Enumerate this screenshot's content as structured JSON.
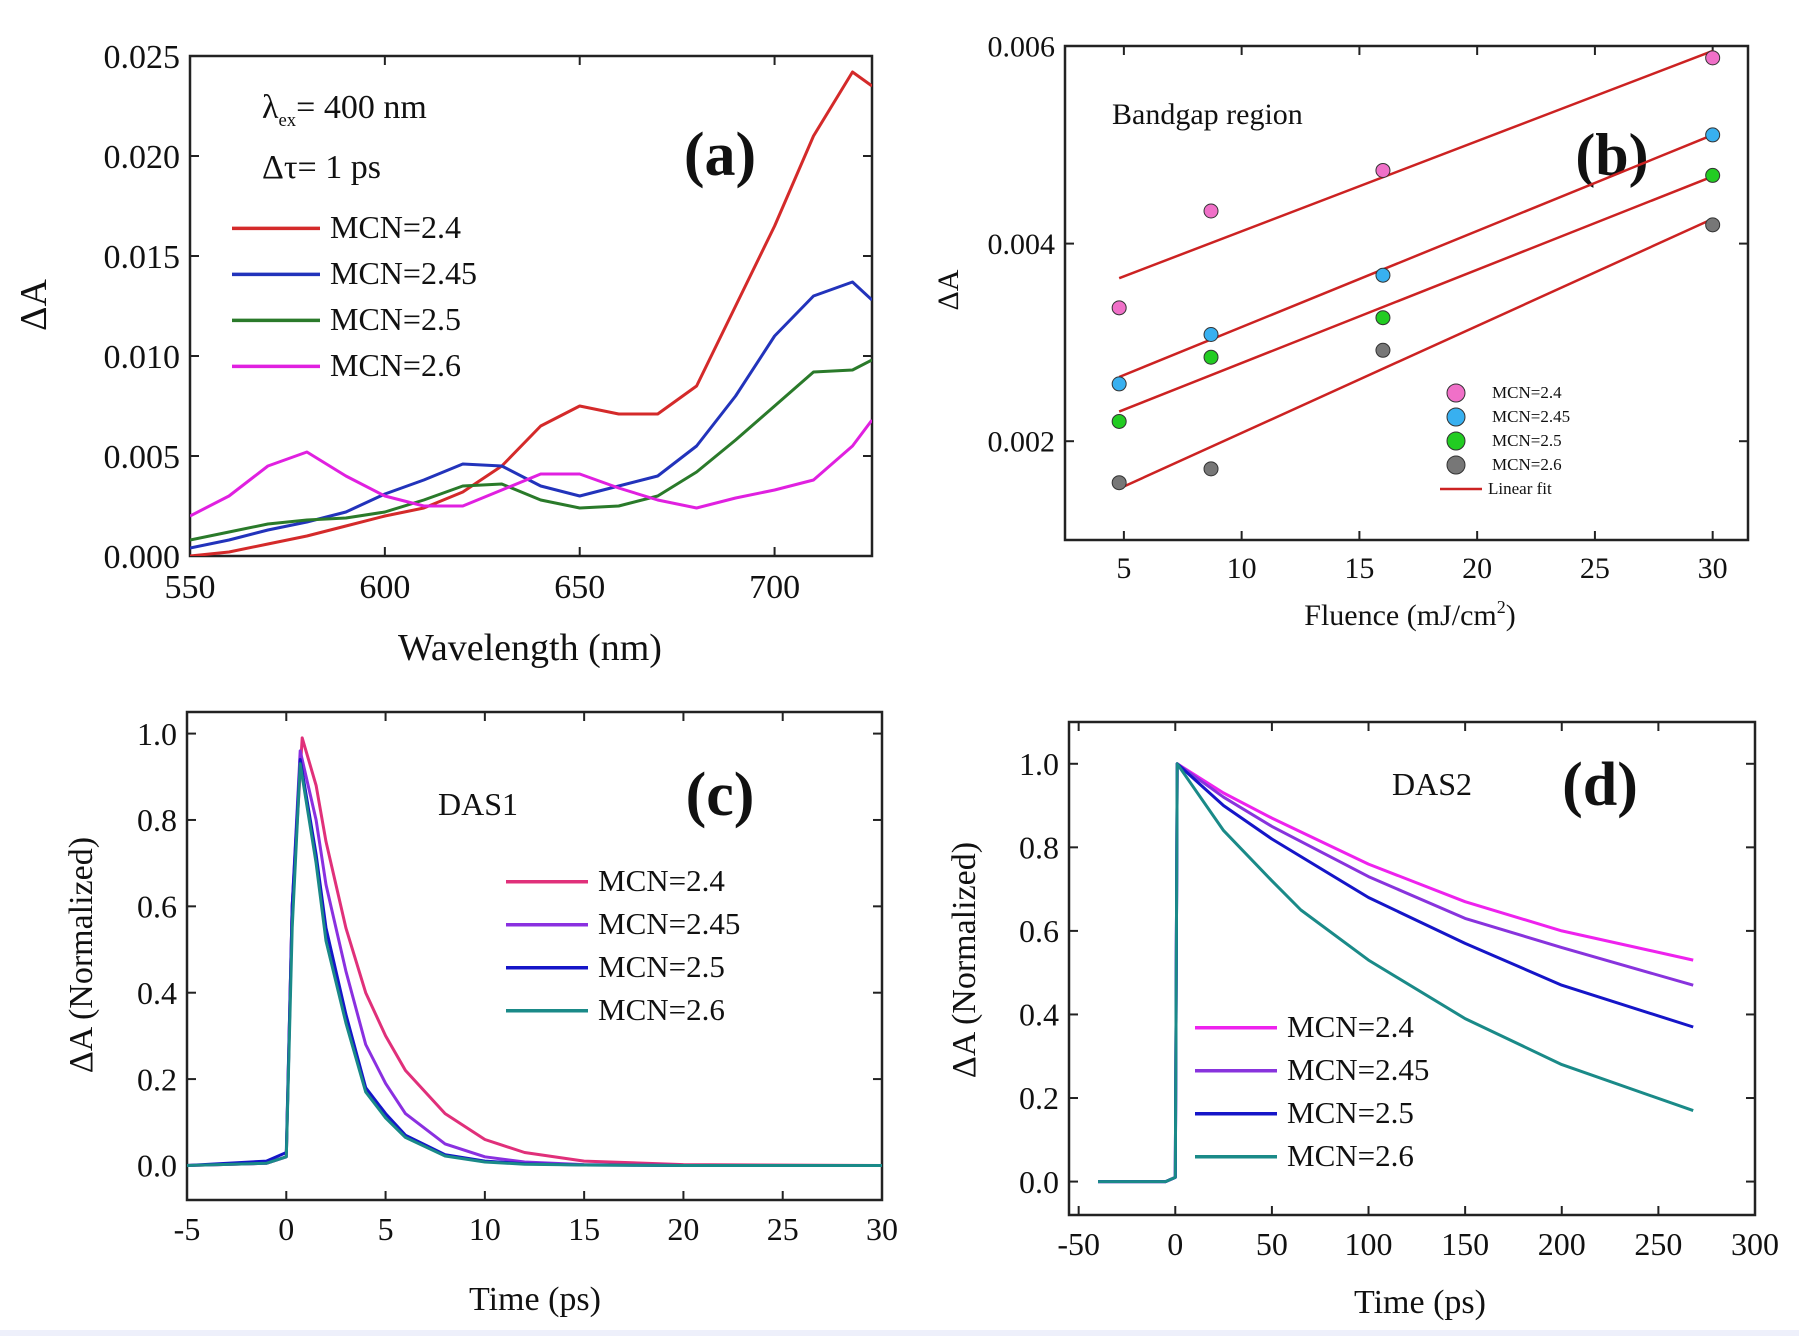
{
  "chart_data": [
    {
      "id": "a",
      "type": "line",
      "panel_label": "(a)",
      "title": "",
      "xlabel": "Wavelength (nm)",
      "ylabel": "ΔA",
      "xlim": [
        550,
        725
      ],
      "ylim": [
        0,
        0.025
      ],
      "xticks": [
        550,
        600,
        650,
        700
      ],
      "xtick_labels": [
        "550",
        "600",
        "650",
        "700"
      ],
      "yticks": [
        0,
        0.005,
        0.01,
        0.015,
        0.02,
        0.025
      ],
      "ytick_labels": [
        "0.000",
        "0.005",
        "0.010",
        "0.015",
        "0.020",
        "0.025"
      ],
      "annotations": [
        {
          "prefix": "λ",
          "sub": "ex",
          "text": "= 400 nm"
        },
        {
          "prefix": "",
          "sub": "",
          "text": "Δτ= 1 ps"
        }
      ],
      "legend_position": "left",
      "series": [
        {
          "name": "MCN=2.4",
          "color": "#d42a2a",
          "x": [
            550,
            560,
            570,
            580,
            590,
            600,
            610,
            620,
            630,
            640,
            650,
            660,
            670,
            680,
            690,
            700,
            710,
            720,
            725
          ],
          "values": [
            0.0,
            0.0002,
            0.0006,
            0.001,
            0.0015,
            0.002,
            0.0024,
            0.0032,
            0.0045,
            0.0065,
            0.0075,
            0.0071,
            0.0071,
            0.0085,
            0.0125,
            0.0165,
            0.021,
            0.0242,
            0.0235
          ]
        },
        {
          "name": "MCN=2.45",
          "color": "#2233bb",
          "x": [
            550,
            560,
            570,
            580,
            590,
            600,
            610,
            620,
            630,
            640,
            650,
            660,
            670,
            680,
            690,
            700,
            710,
            720,
            725
          ],
          "values": [
            0.0004,
            0.0008,
            0.0013,
            0.0017,
            0.0022,
            0.0031,
            0.0038,
            0.0046,
            0.0045,
            0.0035,
            0.003,
            0.0035,
            0.004,
            0.0055,
            0.008,
            0.011,
            0.013,
            0.0137,
            0.0128
          ]
        },
        {
          "name": "MCN=2.5",
          "color": "#2a7a2a",
          "x": [
            550,
            560,
            570,
            580,
            590,
            600,
            610,
            620,
            630,
            640,
            650,
            660,
            670,
            680,
            690,
            700,
            710,
            720,
            725
          ],
          "values": [
            0.0008,
            0.0012,
            0.0016,
            0.0018,
            0.0019,
            0.0022,
            0.0028,
            0.0035,
            0.0036,
            0.0028,
            0.0024,
            0.0025,
            0.003,
            0.0042,
            0.0058,
            0.0075,
            0.0092,
            0.0093,
            0.0098
          ]
        },
        {
          "name": "MCN=2.6",
          "color": "#e020e0",
          "x": [
            550,
            560,
            570,
            580,
            590,
            600,
            610,
            620,
            630,
            640,
            650,
            660,
            670,
            680,
            690,
            700,
            710,
            720,
            725
          ],
          "values": [
            0.002,
            0.003,
            0.0045,
            0.0052,
            0.004,
            0.003,
            0.0025,
            0.0025,
            0.0033,
            0.0041,
            0.0041,
            0.0034,
            0.0028,
            0.0024,
            0.0029,
            0.0033,
            0.0038,
            0.0055,
            0.0068
          ]
        }
      ]
    },
    {
      "id": "b",
      "type": "scatter",
      "panel_label": "(b)",
      "title": "",
      "xlabel": "Fluence (mJ/cm",
      "xlabel_sup": "2",
      "xlabel_end": ")",
      "ylabel": "ΔA",
      "xlim": [
        2.5,
        31.5
      ],
      "ylim": [
        0.001,
        0.006
      ],
      "xticks": [
        5,
        10,
        15,
        20,
        25,
        30
      ],
      "xtick_labels": [
        "5",
        "10",
        "15",
        "20",
        "25",
        "30"
      ],
      "yticks": [
        0.002,
        0.004,
        0.006
      ],
      "ytick_labels": [
        "0.002",
        "0.004",
        "0.006"
      ],
      "annotations": [
        {
          "prefix": "",
          "sub": "",
          "text": "Bandgap region"
        }
      ],
      "legend_position": "bottom-right",
      "fit_label": "Linear fit",
      "fit_color": "#cc2222",
      "series": [
        {
          "name": "MCN=2.4",
          "color": "#f070c8",
          "x": [
            4.8,
            8.7,
            16,
            30
          ],
          "values": [
            0.00335,
            0.00433,
            0.00474,
            0.00588
          ],
          "fit": [
            0.00365,
            0.00595
          ]
        },
        {
          "name": "MCN=2.45",
          "color": "#38b0f0",
          "x": [
            4.8,
            8.7,
            16,
            30
          ],
          "values": [
            0.00258,
            0.00308,
            0.00368,
            0.0051
          ],
          "fit": [
            0.00265,
            0.0051
          ]
        },
        {
          "name": "MCN=2.5",
          "color": "#22cc22",
          "x": [
            4.8,
            8.7,
            16,
            30
          ],
          "values": [
            0.0022,
            0.00285,
            0.00325,
            0.00469
          ],
          "fit": [
            0.0023,
            0.00468
          ]
        },
        {
          "name": "MCN=2.6",
          "color": "#777777",
          "x": [
            4.8,
            8.7,
            16,
            30
          ],
          "values": [
            0.00158,
            0.00172,
            0.00292,
            0.00419
          ],
          "fit": [
            0.00152,
            0.00425
          ]
        }
      ]
    },
    {
      "id": "c",
      "type": "line",
      "panel_label": "(c)",
      "title": "",
      "xlabel": "Time (ps)",
      "ylabel": "ΔA (Normalized)",
      "xlim": [
        -5,
        30
      ],
      "ylim": [
        -0.08,
        1.05
      ],
      "xticks": [
        -5,
        0,
        5,
        10,
        15,
        20,
        25,
        30
      ],
      "xtick_labels": [
        "-5",
        "0",
        "5",
        "10",
        "15",
        "20",
        "25",
        "30"
      ],
      "yticks": [
        0,
        0.2,
        0.4,
        0.6,
        0.8,
        1.0
      ],
      "ytick_labels": [
        "0.0",
        "0.2",
        "0.4",
        "0.6",
        "0.8",
        "1.0"
      ],
      "annotations": [
        {
          "prefix": "",
          "sub": "",
          "text": "DAS1"
        }
      ],
      "legend_position": "right",
      "series": [
        {
          "name": "MCN=2.4",
          "color": "#e0307a",
          "x": [
            -5,
            -1,
            0,
            0.3,
            0.8,
            1.5,
            2,
            3,
            4,
            5,
            6,
            8,
            10,
            12,
            15,
            20,
            30
          ],
          "values": [
            0,
            0.005,
            0.02,
            0.6,
            0.99,
            0.88,
            0.75,
            0.55,
            0.4,
            0.3,
            0.22,
            0.12,
            0.06,
            0.03,
            0.01,
            0.002,
            0
          ]
        },
        {
          "name": "MCN=2.45",
          "color": "#8a30e0",
          "x": [
            -5,
            -1,
            0,
            0.3,
            0.7,
            1.5,
            2,
            3,
            4,
            5,
            6,
            8,
            10,
            12,
            15,
            20,
            30
          ],
          "values": [
            0,
            0.005,
            0.02,
            0.6,
            0.96,
            0.8,
            0.65,
            0.45,
            0.28,
            0.19,
            0.12,
            0.05,
            0.02,
            0.008,
            0.002,
            0,
            0
          ]
        },
        {
          "name": "MCN=2.5",
          "color": "#1515c8",
          "x": [
            -5,
            -1,
            0,
            0.3,
            0.7,
            1.5,
            2,
            3,
            4,
            5,
            6,
            8,
            10,
            12,
            15,
            20,
            30
          ],
          "values": [
            0,
            0.01,
            0.03,
            0.6,
            0.94,
            0.72,
            0.55,
            0.35,
            0.18,
            0.12,
            0.07,
            0.025,
            0.01,
            0.004,
            0.001,
            0,
            0
          ]
        },
        {
          "name": "MCN=2.6",
          "color": "#1a8a88",
          "x": [
            -5,
            -1,
            0,
            0.3,
            0.7,
            1.5,
            2,
            3,
            4,
            5,
            6,
            8,
            10,
            12,
            15,
            20,
            30
          ],
          "values": [
            0,
            0.005,
            0.02,
            0.55,
            0.93,
            0.7,
            0.52,
            0.33,
            0.17,
            0.11,
            0.065,
            0.022,
            0.008,
            0.003,
            0.001,
            0,
            0
          ]
        }
      ]
    },
    {
      "id": "d",
      "type": "line",
      "panel_label": "(d)",
      "title": "",
      "xlabel": "Time (ps)",
      "ylabel": "ΔA (Normalized)",
      "xlim": [
        -55,
        300
      ],
      "ylim": [
        -0.08,
        1.1
      ],
      "xticks": [
        -50,
        0,
        50,
        100,
        150,
        200,
        250,
        300
      ],
      "xtick_labels": [
        "-50",
        "0",
        "50",
        "100",
        "150",
        "200",
        "250",
        "300"
      ],
      "yticks": [
        0,
        0.2,
        0.4,
        0.6,
        0.8,
        1.0
      ],
      "ytick_labels": [
        "0.0",
        "0.2",
        "0.4",
        "0.6",
        "0.8",
        "1.0"
      ],
      "annotations": [
        {
          "prefix": "",
          "sub": "",
          "text": "DAS2"
        }
      ],
      "legend_position": "bottom-left",
      "series": [
        {
          "name": "MCN=2.4",
          "color": "#ee22ee",
          "x": [
            -40,
            -5,
            0,
            1,
            25,
            50,
            100,
            150,
            200,
            268
          ],
          "values": [
            0,
            0,
            0.01,
            1.0,
            0.93,
            0.87,
            0.76,
            0.67,
            0.6,
            0.53
          ]
        },
        {
          "name": "MCN=2.45",
          "color": "#8833dd",
          "x": [
            -40,
            -5,
            0,
            1,
            25,
            50,
            100,
            150,
            200,
            268
          ],
          "values": [
            0,
            0,
            0.01,
            1.0,
            0.92,
            0.85,
            0.73,
            0.63,
            0.56,
            0.47
          ]
        },
        {
          "name": "MCN=2.5",
          "color": "#1515c8",
          "x": [
            -40,
            -5,
            0,
            1,
            25,
            50,
            100,
            150,
            200,
            268
          ],
          "values": [
            0,
            0,
            0.01,
            1.0,
            0.9,
            0.82,
            0.68,
            0.57,
            0.47,
            0.37
          ]
        },
        {
          "name": "MCN=2.6",
          "color": "#1a8a88",
          "x": [
            -40,
            -5,
            0,
            1,
            25,
            50,
            65,
            100,
            150,
            200,
            268
          ],
          "values": [
            0,
            0,
            0.01,
            1.0,
            0.84,
            0.72,
            0.65,
            0.53,
            0.39,
            0.28,
            0.17
          ]
        }
      ]
    }
  ]
}
